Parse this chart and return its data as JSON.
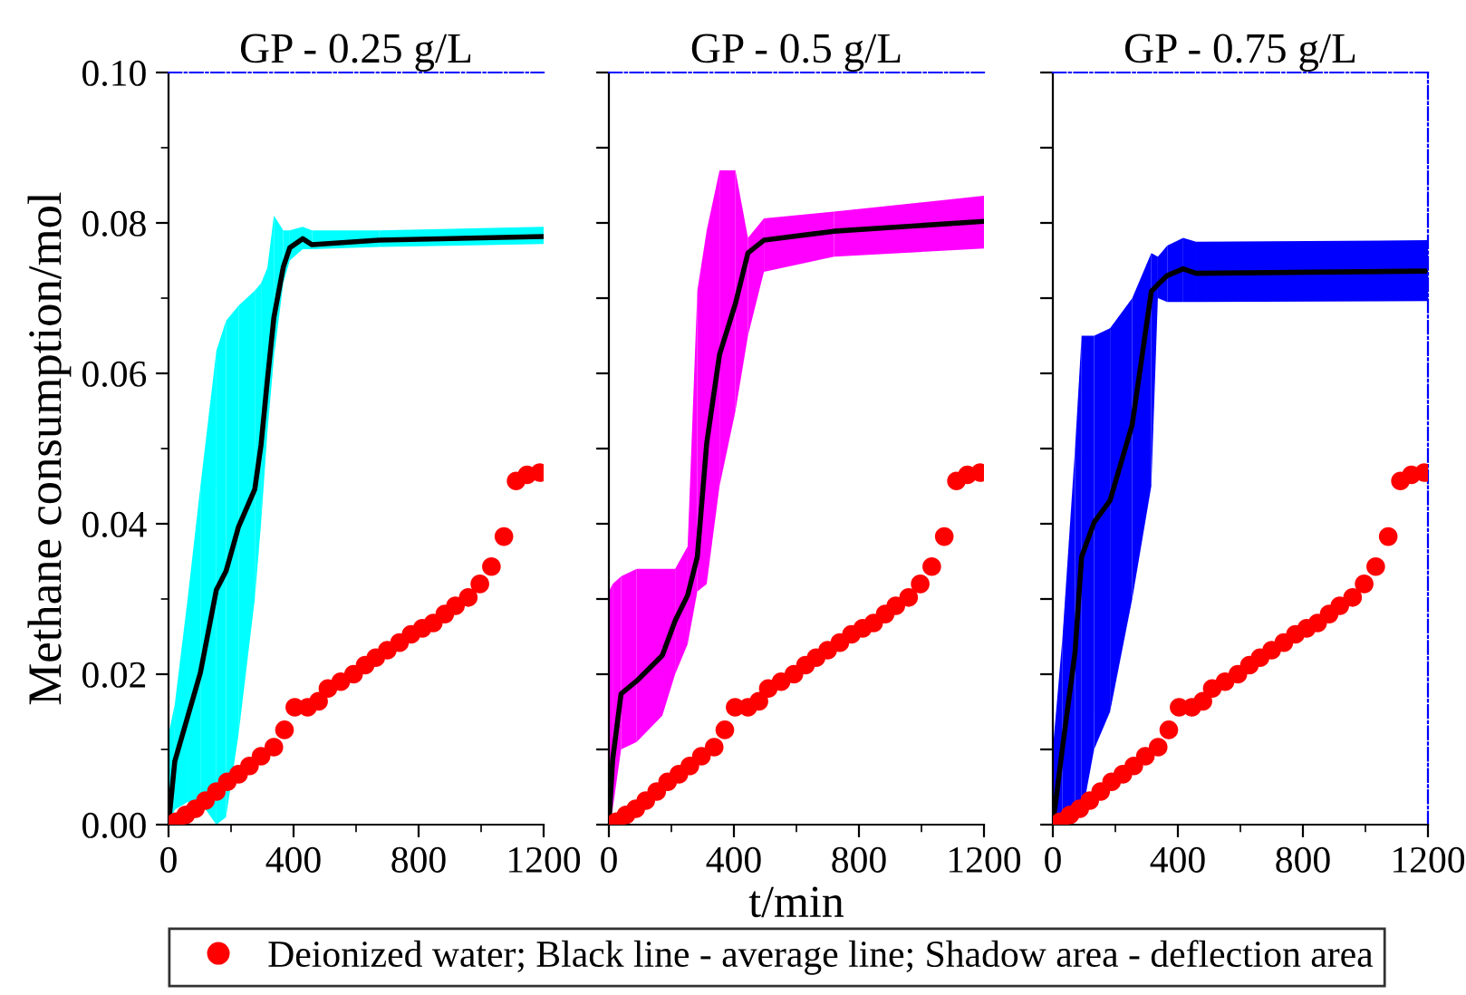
{
  "chart_data": [
    {
      "type": "line",
      "title": "GP - 0.25 g/L",
      "ylabel": "Methane consumption/mol",
      "xlim": [
        0,
        1200
      ],
      "ylim": [
        0,
        0.1
      ],
      "xticks": [
        0,
        {
          "value": 200,
          "label": null
        },
        400,
        {
          "value": 600,
          "label": null
        },
        800,
        {
          "value": 1000,
          "label": null
        },
        1200
      ],
      "yticks": [
        {
          "value": 0,
          "label": "0.00"
        },
        {
          "value": 0.01,
          "label": null
        },
        {
          "value": 0.02,
          "label": "0.02"
        },
        {
          "value": 0.03,
          "label": null
        },
        {
          "value": 0.04,
          "label": "0.04"
        },
        {
          "value": 0.05,
          "label": null
        },
        {
          "value": 0.06,
          "label": "0.06"
        },
        {
          "value": 0.07,
          "label": null
        },
        {
          "value": 0.08,
          "label": "0.08"
        },
        {
          "value": 0.09,
          "label": null
        },
        {
          "value": 0.1,
          "label": "0.10"
        }
      ],
      "legend": "bottom",
      "grid": false,
      "series": [
        {
          "color": "#000000",
          "colors": [
            "#00ffff",
            "#00ffff",
            "#00ffff",
            "#00ffff",
            "#00ffff",
            "#00ffff",
            "#00ffff",
            "#00ffff",
            "#00ffff",
            "#00ffff",
            "#00ffff",
            "#00ffff",
            "#00ffff",
            "#00ffff",
            "#00ffff",
            "#00ffff",
            "#00ffff"
          ],
          "x": [
            0,
            20,
            61,
            102,
            153,
            184,
            224,
            276,
            296,
            316,
            337,
            367,
            388,
            429,
            459,
            673,
            1200
          ],
          "values": [
            0,
            0.0084,
            0.0143,
            0.0202,
            0.0312,
            0.0337,
            0.0396,
            0.0446,
            0.0505,
            0.059,
            0.0674,
            0.0741,
            0.0767,
            0.0779,
            0.0771,
            0.0777,
            0.0782
          ],
          "lower": [
            0,
            0.002,
            0.003,
            0.003,
            0,
            0.001,
            0.012,
            0.03,
            0.04,
            0.052,
            0.062,
            0.072,
            0.075,
            0.0765,
            0.0765,
            0.0768,
            0.0772
          ],
          "upper": [
            0.012,
            0.016,
            0.03,
            0.045,
            0.063,
            0.067,
            0.069,
            0.071,
            0.072,
            0.074,
            0.081,
            0.079,
            0.079,
            0.0795,
            0.079,
            0.079,
            0.0795
          ]
        },
        {
          "type": "scatter",
          "name": "Deionized water; Black line - average line; Shadow area - deflection area",
          "color": "#ff0000",
          "marker": "circle",
          "x": [
            24,
            55,
            86,
            118,
            153,
            188,
            224,
            259,
            296,
            337,
            371,
            404,
            445,
            480,
            510,
            551,
            592,
            629,
            663,
            700,
            739,
            776,
            812,
            847,
            884,
            918,
            959,
            996,
            1033,
            1073,
            1112,
            1147,
            1188
          ],
          "values": [
            0.0004,
            0.0013,
            0.0021,
            0.0032,
            0.0044,
            0.0057,
            0.0067,
            0.0078,
            0.0091,
            0.0103,
            0.0126,
            0.0156,
            0.0156,
            0.0164,
            0.0181,
            0.019,
            0.02,
            0.0212,
            0.0222,
            0.0232,
            0.0242,
            0.0253,
            0.0261,
            0.0268,
            0.028,
            0.0291,
            0.0302,
            0.032,
            0.0343,
            0.0383,
            0.0457,
            0.0465,
            0.0468
          ]
        }
      ]
    },
    {
      "type": "line",
      "title": "GP - 0.5 g/L",
      "xlabel": "t/min",
      "xlim": [
        0,
        1200
      ],
      "ylim": [
        0,
        0.1
      ],
      "tick_labels": "x",
      "xticks": [
        0,
        {
          "value": 200,
          "label": null
        },
        400,
        {
          "value": 600,
          "label": null
        },
        800,
        {
          "value": 1000,
          "label": null
        },
        1200
      ],
      "yticks": [
        {
          "value": 0,
          "label": null
        },
        {
          "value": 0.01,
          "label": null
        },
        {
          "value": 0.02,
          "label": null
        },
        {
          "value": 0.03,
          "label": null
        },
        {
          "value": 0.04,
          "label": null
        },
        {
          "value": 0.05,
          "label": null
        },
        {
          "value": 0.06,
          "label": null
        },
        {
          "value": 0.07,
          "label": null
        },
        {
          "value": 0.08,
          "label": null
        },
        {
          "value": 0.09,
          "label": null
        },
        {
          "value": 0.1,
          "label": null
        }
      ],
      "grid": false,
      "series": [
        {
          "color": "#000000",
          "colors": [
            "#ff00ff",
            "#ff00ff",
            "#ff00ff",
            "#ff00ff",
            "#ff00ff",
            "#ff00ff",
            "#ff00ff",
            "#ff00ff",
            "#ff00ff",
            "#ff00ff",
            "#ff00ff",
            "#ff00ff",
            "#ff00ff",
            "#ff00ff",
            "#ff00ff"
          ],
          "x": [
            0,
            12,
            39,
            89,
            171,
            212,
            252,
            283,
            313,
            354,
            405,
            445,
            496,
            720,
            1200
          ],
          "values": [
            0,
            0.0086,
            0.0174,
            0.0191,
            0.0225,
            0.0271,
            0.0305,
            0.0356,
            0.0507,
            0.0625,
            0.0693,
            0.076,
            0.0777,
            0.0789,
            0.0802
          ],
          "lower": [
            0,
            0.002,
            0.01,
            0.011,
            0.0145,
            0.02,
            0.024,
            0.031,
            0.032,
            0.045,
            0.055,
            0.065,
            0.0735,
            0.0755,
            0.0766
          ],
          "upper": [
            0.031,
            0.032,
            0.033,
            0.034,
            0.034,
            0.034,
            0.037,
            0.071,
            0.079,
            0.087,
            0.087,
            0.078,
            0.0806,
            0.0815,
            0.0836
          ]
        },
        {
          "type": "scatter",
          "color": "#ff0000",
          "marker": "circle",
          "x": [
            24,
            55,
            86,
            118,
            153,
            188,
            224,
            259,
            296,
            337,
            371,
            404,
            445,
            480,
            510,
            551,
            592,
            629,
            663,
            700,
            739,
            776,
            812,
            847,
            884,
            918,
            959,
            996,
            1033,
            1073,
            1112,
            1147,
            1188
          ],
          "values": [
            0.0004,
            0.0013,
            0.0021,
            0.0032,
            0.0044,
            0.0057,
            0.0067,
            0.0078,
            0.0091,
            0.0103,
            0.0126,
            0.0156,
            0.0156,
            0.0164,
            0.0181,
            0.019,
            0.02,
            0.0212,
            0.0222,
            0.0232,
            0.0242,
            0.0253,
            0.0261,
            0.0268,
            0.028,
            0.0291,
            0.0302,
            0.032,
            0.0343,
            0.0383,
            0.0457,
            0.0465,
            0.0468
          ]
        }
      ]
    },
    {
      "type": "line",
      "title": "GP - 0.75 g/L",
      "xlim": [
        0,
        1200
      ],
      "ylim": [
        0,
        0.1
      ],
      "tick_labels": "x",
      "xticks": [
        0,
        {
          "value": 200,
          "label": null
        },
        400,
        {
          "value": 600,
          "label": null
        },
        800,
        {
          "value": 1000,
          "label": null
        },
        1200
      ],
      "yticks": [
        {
          "value": 0,
          "label": null
        },
        {
          "value": 0.01,
          "label": null
        },
        {
          "value": 0.02,
          "label": null
        },
        {
          "value": 0.03,
          "label": null
        },
        {
          "value": 0.04,
          "label": null
        },
        {
          "value": 0.05,
          "label": null
        },
        {
          "value": 0.06,
          "label": null
        },
        {
          "value": 0.07,
          "label": null
        },
        {
          "value": 0.08,
          "label": null
        },
        {
          "value": 0.09,
          "label": null
        },
        {
          "value": 0.1,
          "label": null
        }
      ],
      "grid": false,
      "series": [
        {
          "color": "#000000",
          "colors": [
            "#0000ff",
            "#0000ff",
            "#0000ff",
            "#0000ff",
            "#0000ff",
            "#0000ff",
            "#0000ff",
            "#0000ff",
            "#0000ff",
            "#0000ff",
            "#0000ff",
            "#0000ff",
            "#0000ff"
          ],
          "x": [
            0,
            31,
            71,
            92,
            132,
            183,
            254,
            315,
            336,
            366,
            417,
            458,
            1200
          ],
          "values": [
            0,
            0.0103,
            0.0229,
            0.0356,
            0.0402,
            0.0431,
            0.0532,
            0.0709,
            0.0718,
            0.073,
            0.0739,
            0.0733,
            0.0736
          ],
          "lower": [
            0,
            0.001,
            0.001,
            0.001,
            0.01,
            0.015,
            0.03,
            0.045,
            0.07,
            0.0695,
            0.0695,
            0.0695,
            0.0696
          ],
          "upper": [
            0.01,
            0.025,
            0.05,
            0.065,
            0.065,
            0.066,
            0.07,
            0.076,
            0.0755,
            0.077,
            0.078,
            0.0775,
            0.0777
          ]
        },
        {
          "type": "scatter",
          "color": "#ff0000",
          "marker": "circle",
          "x": [
            24,
            55,
            86,
            118,
            153,
            188,
            224,
            259,
            296,
            337,
            371,
            404,
            445,
            480,
            510,
            551,
            592,
            629,
            663,
            700,
            739,
            776,
            812,
            847,
            884,
            918,
            959,
            996,
            1033,
            1073,
            1112,
            1147,
            1188
          ],
          "values": [
            0.0004,
            0.0013,
            0.0021,
            0.0032,
            0.0044,
            0.0057,
            0.0067,
            0.0078,
            0.0091,
            0.0103,
            0.0126,
            0.0156,
            0.0156,
            0.0164,
            0.0181,
            0.019,
            0.02,
            0.0212,
            0.0222,
            0.0232,
            0.0242,
            0.0253,
            0.0261,
            0.0268,
            0.028,
            0.0291,
            0.0302,
            0.032,
            0.0343,
            0.0383,
            0.0457,
            0.0465,
            0.0468
          ]
        }
      ]
    }
  ]
}
